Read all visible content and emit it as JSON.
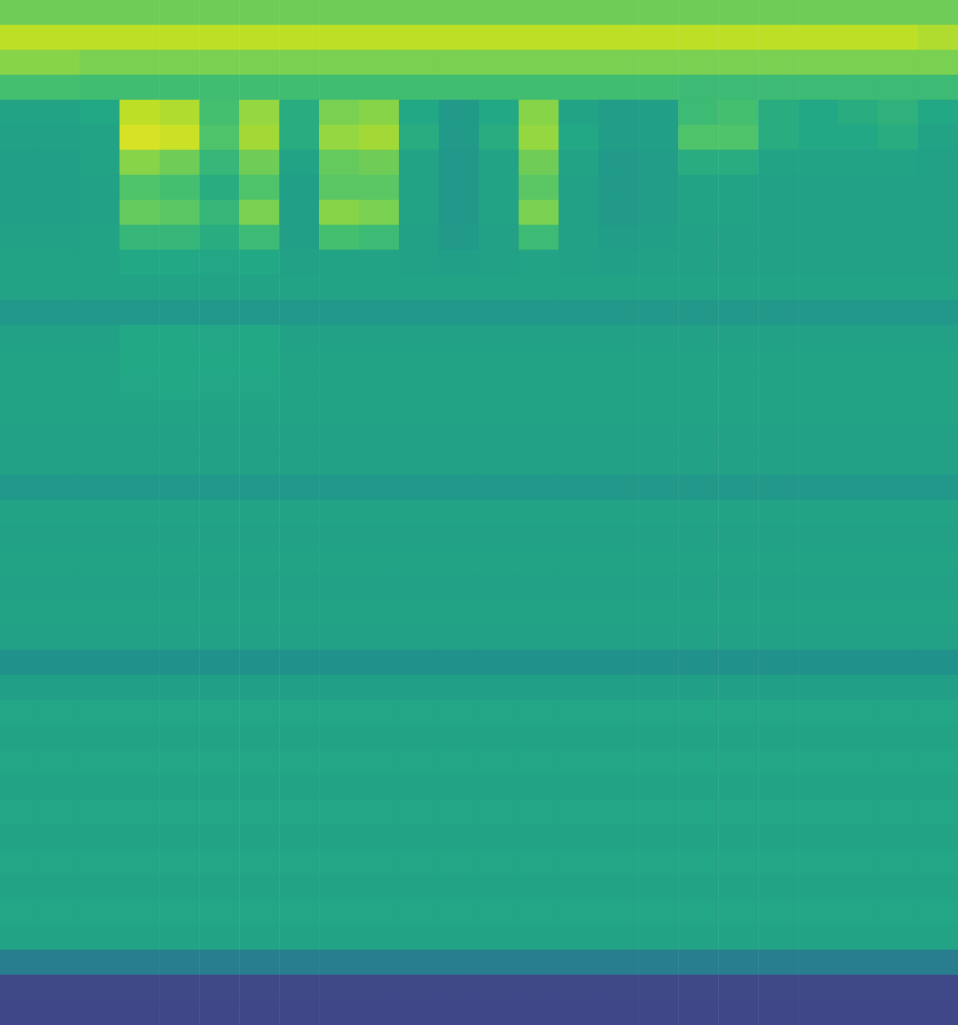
{
  "chart_data": {
    "type": "heatmap",
    "tick_labels": false,
    "grid": false,
    "color_range": [
      0,
      100
    ],
    "cells": [
      [
        78,
        78,
        78,
        78,
        78,
        78,
        78,
        78,
        78,
        78,
        78,
        78,
        78,
        78,
        78,
        78,
        78,
        78,
        78,
        78,
        78,
        78,
        78,
        78
      ],
      [
        90,
        90,
        90,
        90,
        90,
        90,
        90,
        90,
        90,
        90,
        90,
        90,
        90,
        90,
        90,
        90,
        90,
        90,
        90,
        90,
        90,
        90,
        90,
        88
      ],
      [
        82,
        82,
        80,
        80,
        80,
        80,
        80,
        80,
        80,
        80,
        80,
        80,
        80,
        80,
        80,
        80,
        80,
        80,
        80,
        80,
        80,
        80,
        80,
        80
      ],
      [
        70,
        70,
        69,
        69,
        69,
        69,
        69,
        69,
        69,
        69,
        69,
        69,
        69,
        69,
        69,
        69,
        69,
        68,
        68,
        68,
        68,
        68,
        68,
        68
      ],
      [
        58,
        58,
        60,
        90,
        88,
        70,
        84,
        62,
        80,
        82,
        60,
        54,
        60,
        82,
        58,
        55,
        56,
        68,
        70,
        62,
        60,
        62,
        64,
        60
      ],
      [
        57,
        57,
        58,
        94,
        92,
        72,
        86,
        62,
        84,
        86,
        62,
        54,
        62,
        84,
        60,
        55,
        56,
        72,
        72,
        62,
        60,
        60,
        62,
        58
      ],
      [
        56,
        56,
        58,
        82,
        78,
        66,
        78,
        58,
        76,
        78,
        58,
        53,
        58,
        78,
        58,
        54,
        55,
        62,
        62,
        58,
        58,
        58,
        58,
        57
      ],
      [
        56,
        56,
        57,
        72,
        70,
        62,
        72,
        56,
        74,
        74,
        58,
        53,
        58,
        74,
        57,
        54,
        55,
        58,
        58,
        57,
        57,
        57,
        57,
        57
      ],
      [
        56,
        56,
        57,
        76,
        74,
        66,
        80,
        56,
        82,
        80,
        58,
        53,
        58,
        80,
        57,
        54,
        55,
        58,
        58,
        57,
        57,
        57,
        57,
        57
      ],
      [
        57,
        57,
        58,
        66,
        66,
        62,
        68,
        56,
        70,
        68,
        57,
        54,
        57,
        68,
        57,
        55,
        56,
        57,
        57,
        57,
        57,
        57,
        57,
        57
      ],
      [
        58,
        58,
        58,
        60,
        60,
        59,
        60,
        57,
        58,
        58,
        57,
        56,
        57,
        58,
        57,
        56,
        57,
        57,
        57,
        57,
        57,
        57,
        57,
        57
      ],
      [
        58,
        58,
        58,
        58,
        58,
        58,
        58,
        58,
        58,
        58,
        58,
        58,
        58,
        58,
        58,
        58,
        58,
        58,
        58,
        58,
        58,
        58,
        58,
        58
      ],
      [
        53,
        53,
        53,
        53,
        53,
        53,
        53,
        53,
        53,
        53,
        53,
        53,
        53,
        53,
        53,
        53,
        53,
        53,
        53,
        53,
        53,
        53,
        53,
        53
      ],
      [
        57,
        57,
        57,
        60,
        60,
        59,
        60,
        57,
        57,
        57,
        57,
        57,
        57,
        57,
        57,
        57,
        57,
        57,
        57,
        57,
        57,
        57,
        57,
        57
      ],
      [
        58,
        58,
        58,
        60,
        60,
        60,
        60,
        58,
        58,
        58,
        58,
        58,
        58,
        58,
        58,
        58,
        58,
        58,
        58,
        58,
        58,
        58,
        58,
        58
      ],
      [
        58,
        58,
        58,
        59,
        60,
        59,
        59,
        58,
        58,
        58,
        58,
        58,
        58,
        58,
        58,
        58,
        58,
        58,
        58,
        58,
        58,
        58,
        58,
        58
      ],
      [
        58,
        58,
        58,
        58,
        58,
        58,
        58,
        58,
        58,
        58,
        58,
        58,
        58,
        58,
        58,
        58,
        58,
        58,
        58,
        58,
        58,
        58,
        58,
        58
      ],
      [
        57,
        57,
        57,
        57,
        57,
        57,
        57,
        57,
        57,
        57,
        57,
        57,
        57,
        57,
        57,
        57,
        57,
        57,
        57,
        57,
        57,
        57,
        57,
        57
      ],
      [
        57,
        57,
        57,
        57,
        57,
        57,
        57,
        57,
        57,
        57,
        57,
        57,
        57,
        57,
        57,
        57,
        57,
        57,
        57,
        57,
        57,
        57,
        57,
        57
      ],
      [
        53,
        53,
        53,
        53,
        53,
        53,
        53,
        53,
        53,
        53,
        53,
        53,
        53,
        53,
        53,
        53,
        53,
        53,
        53,
        53,
        53,
        53,
        53,
        53
      ],
      [
        58,
        58,
        58,
        58,
        58,
        58,
        58,
        58,
        58,
        58,
        58,
        58,
        58,
        58,
        58,
        58,
        58,
        58,
        58,
        58,
        58,
        58,
        58,
        58
      ],
      [
        57,
        57,
        57,
        57,
        57,
        57,
        57,
        57,
        57,
        57,
        57,
        57,
        57,
        57,
        57,
        57,
        57,
        57,
        57,
        57,
        57,
        57,
        57,
        57
      ],
      [
        58,
        58,
        58,
        58,
        58,
        58,
        58,
        58,
        58,
        58,
        58,
        58,
        58,
        58,
        58,
        58,
        58,
        58,
        58,
        58,
        58,
        58,
        58,
        58
      ],
      [
        57,
        57,
        57,
        57,
        57,
        57,
        57,
        57,
        57,
        57,
        57,
        57,
        57,
        57,
        57,
        57,
        57,
        57,
        57,
        57,
        57,
        57,
        57,
        57
      ],
      [
        58,
        58,
        58,
        58,
        58,
        58,
        58,
        58,
        58,
        58,
        58,
        58,
        58,
        58,
        58,
        58,
        58,
        58,
        58,
        58,
        58,
        58,
        58,
        58
      ],
      [
        57,
        57,
        57,
        57,
        57,
        57,
        57,
        57,
        57,
        57,
        57,
        57,
        57,
        57,
        57,
        57,
        57,
        57,
        57,
        57,
        57,
        57,
        57,
        57
      ],
      [
        50,
        50,
        50,
        50,
        50,
        50,
        50,
        50,
        50,
        50,
        50,
        50,
        50,
        50,
        50,
        50,
        50,
        50,
        50,
        50,
        50,
        50,
        50,
        50
      ],
      [
        56,
        56,
        56,
        56,
        56,
        56,
        56,
        56,
        56,
        56,
        56,
        56,
        56,
        56,
        56,
        56,
        56,
        56,
        56,
        56,
        56,
        56,
        56,
        56
      ],
      [
        59,
        59,
        59,
        59,
        59,
        59,
        59,
        59,
        59,
        59,
        59,
        59,
        59,
        59,
        59,
        59,
        59,
        59,
        59,
        59,
        59,
        59,
        59,
        59
      ],
      [
        58,
        58,
        58,
        58,
        58,
        58,
        58,
        58,
        58,
        58,
        58,
        58,
        58,
        58,
        58,
        58,
        58,
        58,
        58,
        58,
        58,
        58,
        58,
        58
      ],
      [
        59,
        59,
        59,
        59,
        59,
        59,
        59,
        59,
        59,
        59,
        59,
        59,
        59,
        59,
        59,
        59,
        59,
        59,
        59,
        59,
        59,
        59,
        59,
        59
      ],
      [
        58,
        58,
        58,
        58,
        58,
        58,
        58,
        58,
        58,
        58,
        58,
        58,
        58,
        58,
        58,
        58,
        58,
        58,
        58,
        58,
        58,
        58,
        58,
        58
      ],
      [
        59,
        59,
        59,
        59,
        59,
        59,
        59,
        59,
        59,
        59,
        59,
        59,
        59,
        59,
        59,
        59,
        59,
        59,
        59,
        59,
        59,
        59,
        59,
        59
      ],
      [
        58,
        58,
        58,
        58,
        58,
        58,
        58,
        58,
        58,
        58,
        58,
        58,
        58,
        58,
        58,
        58,
        58,
        58,
        58,
        58,
        58,
        58,
        58,
        58
      ],
      [
        59,
        59,
        59,
        59,
        59,
        59,
        59,
        59,
        59,
        59,
        59,
        59,
        59,
        59,
        59,
        59,
        59,
        59,
        59,
        59,
        59,
        59,
        59,
        59
      ],
      [
        58,
        58,
        58,
        58,
        58,
        58,
        58,
        58,
        58,
        58,
        58,
        58,
        58,
        58,
        58,
        58,
        58,
        58,
        58,
        58,
        58,
        58,
        58,
        58
      ],
      [
        59,
        59,
        59,
        59,
        59,
        59,
        59,
        59,
        59,
        59,
        59,
        59,
        59,
        59,
        59,
        59,
        59,
        59,
        59,
        59,
        59,
        59,
        59,
        59
      ],
      [
        58,
        58,
        58,
        58,
        58,
        58,
        58,
        58,
        58,
        58,
        58,
        58,
        58,
        58,
        58,
        58,
        58,
        58,
        58,
        58,
        58,
        58,
        58,
        58
      ],
      [
        42,
        42,
        42,
        42,
        42,
        42,
        42,
        42,
        42,
        42,
        42,
        42,
        42,
        42,
        42,
        42,
        42,
        42,
        42,
        42,
        42,
        42,
        42,
        42
      ],
      [
        22,
        22,
        22,
        22,
        22,
        22,
        22,
        22,
        22,
        22,
        22,
        22,
        22,
        22,
        22,
        22,
        22,
        22,
        22,
        22,
        22,
        22,
        22,
        22
      ],
      [
        21,
        21,
        21,
        21,
        21,
        21,
        21,
        21,
        21,
        21,
        21,
        21,
        21,
        21,
        21,
        21,
        21,
        21,
        21,
        21,
        21,
        21,
        21,
        21
      ]
    ]
  }
}
